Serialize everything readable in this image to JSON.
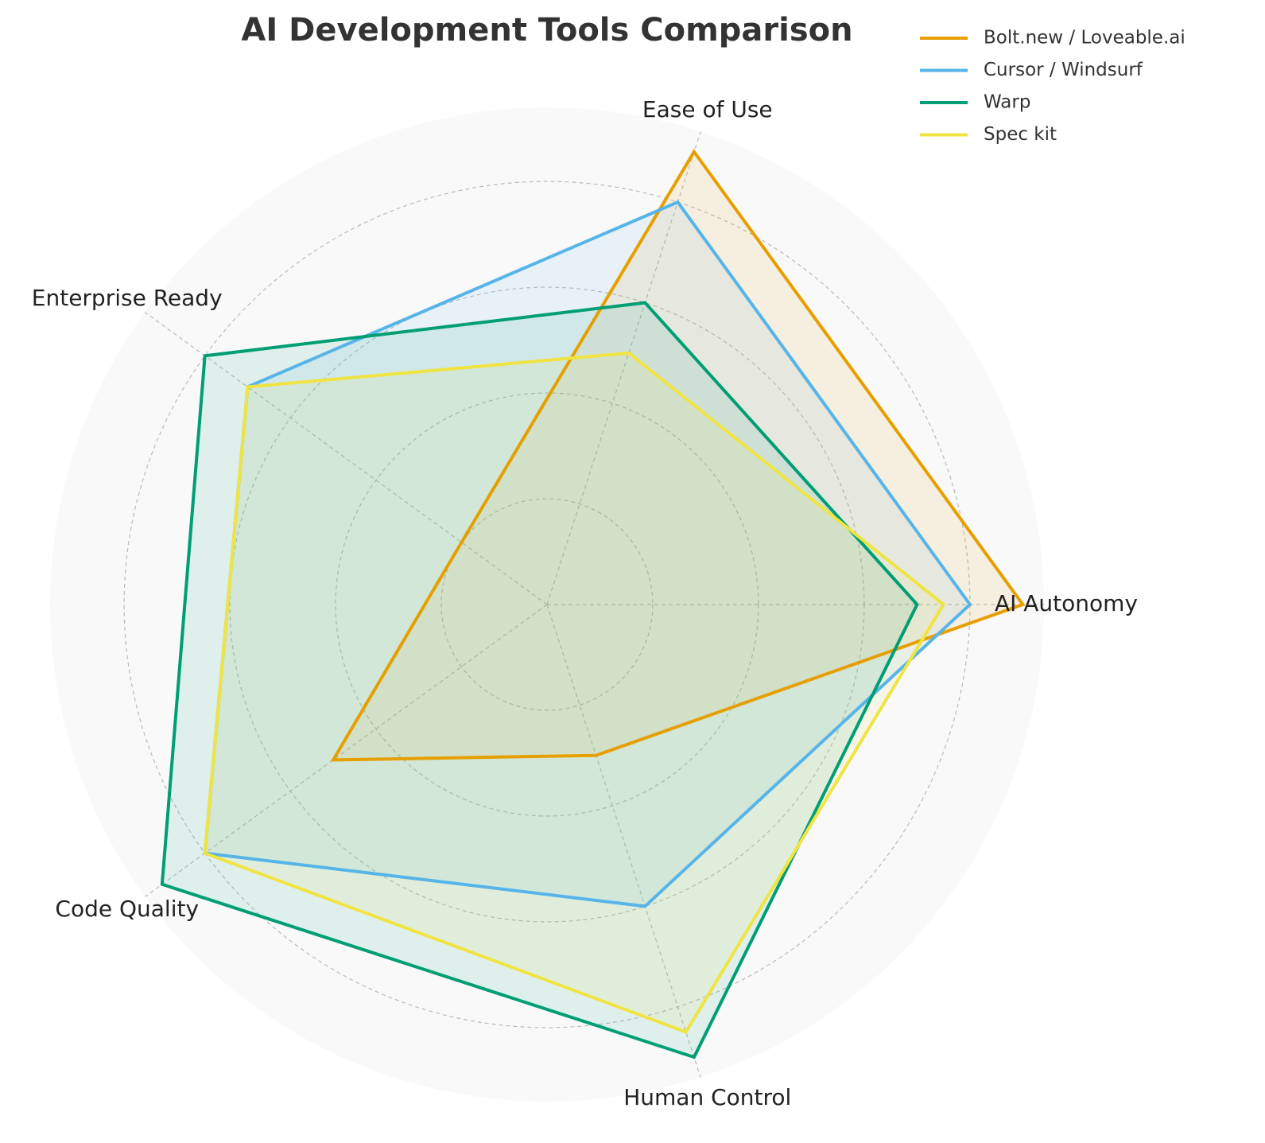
{
  "chart_data": {
    "type": "radar",
    "title": "AI Development Tools Comparison",
    "categories": [
      "AI Autonomy",
      "Ease of Use",
      "Enterprise Ready",
      "Code Quality",
      "Human Control"
    ],
    "series": [
      {
        "name": "Bolt.new / Loveable.ai",
        "color": "#E69F00",
        "values": [
          9,
          9,
          2,
          5,
          3
        ]
      },
      {
        "name": "Cursor / Windsurf",
        "color": "#56B4E9",
        "values": [
          8,
          8,
          7,
          8,
          6
        ]
      },
      {
        "name": "Warp",
        "color": "#009E73",
        "values": [
          7,
          6,
          8,
          9,
          9
        ]
      },
      {
        "name": "Spec kit",
        "color": "#F0E442",
        "values": [
          7.5,
          5,
          7,
          8,
          8.5
        ]
      }
    ],
    "ylim": [
      0,
      9.4
    ],
    "yticks": [
      2,
      4,
      6,
      8
    ],
    "grid": true,
    "legend": "upper right"
  }
}
